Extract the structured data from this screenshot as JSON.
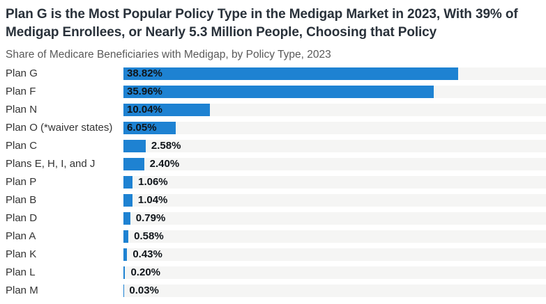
{
  "header": {
    "title": "Plan G is the Most Popular Policy Type in the Medigap Market in 2023, With 39% of Medigap Enrollees, or Nearly 5.3 Million People, Choosing that Policy",
    "subtitle": "Share of Medicare Beneficiaries with Medigap, by Policy Type, 2023"
  },
  "colors": {
    "bar": "#1e82d2",
    "track": "#f5f5f4",
    "title": "#29313a",
    "subtitle": "#595959",
    "category_label": "#333333",
    "value_label": "#10151a"
  },
  "chart_data": {
    "type": "bar",
    "orientation": "horizontal",
    "title": "Plan G is the Most Popular Policy Type in the Medigap Market in 2023, With 39% of Medigap Enrollees, or Nearly 5.3 Million People, Choosing that Policy",
    "subtitle": "Share of Medicare Beneficiaries with Medigap, by Policy Type, 2023",
    "xlabel": "",
    "ylabel": "",
    "categories": [
      "Plan G",
      "Plan F",
      "Plan N",
      "Plan O (*waiver states)",
      "Plan C",
      "Plans E, H, I, and J",
      "Plan P",
      "Plan B",
      "Plan D",
      "Plan A",
      "Plan K",
      "Plan L",
      "Plan M"
    ],
    "values": [
      38.82,
      35.96,
      10.04,
      6.05,
      2.58,
      2.4,
      1.06,
      1.04,
      0.79,
      0.58,
      0.43,
      0.2,
      0.03
    ],
    "value_labels": [
      "38.82%",
      "35.96%",
      "10.04%",
      "6.05%",
      "2.58%",
      "2.40%",
      "1.06%",
      "1.04%",
      "0.79%",
      "0.58%",
      "0.43%",
      "0.20%",
      "0.03%"
    ],
    "xlim": [
      0,
      49
    ],
    "grid": false,
    "legend": false,
    "value_label_inside_threshold": 5
  }
}
